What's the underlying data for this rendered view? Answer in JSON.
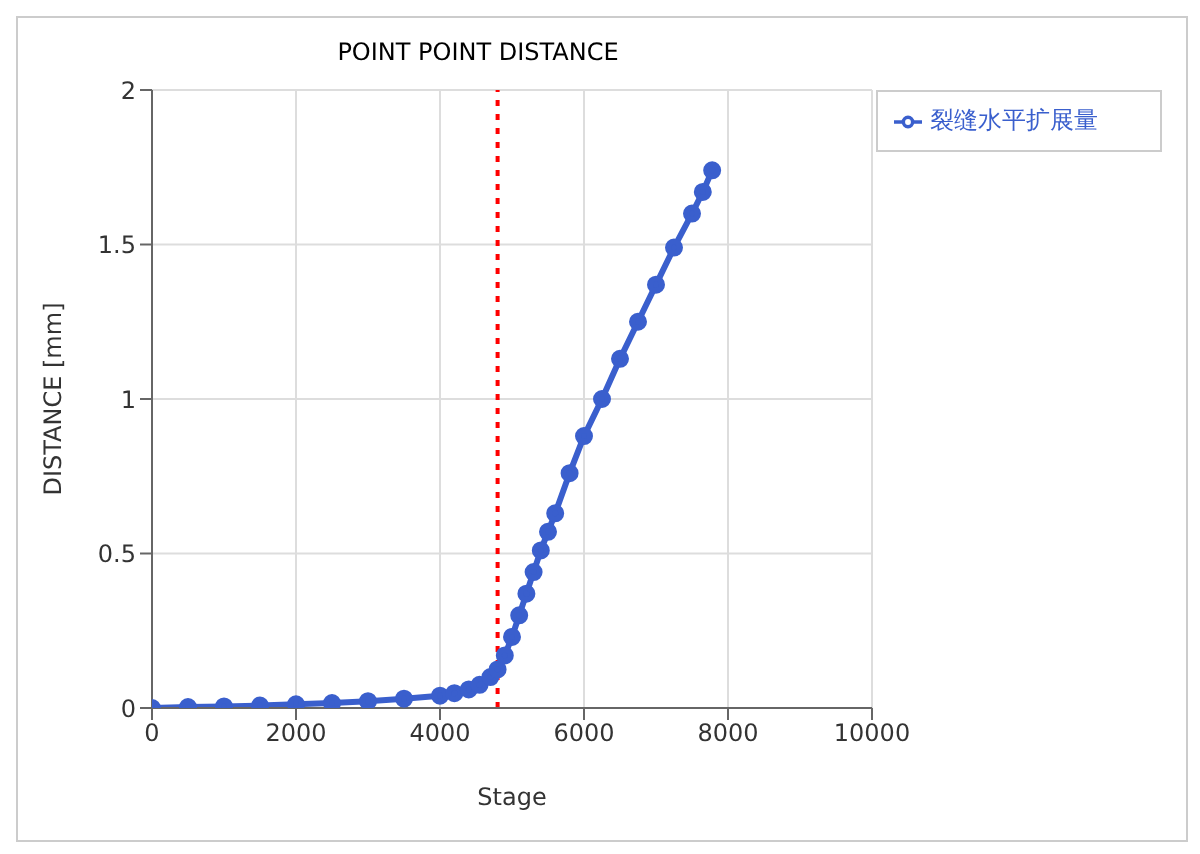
{
  "chart_data": {
    "type": "line",
    "title": "POINT POINT DISTANCE",
    "xlabel": "Stage",
    "ylabel": "DISTANCE [mm]",
    "x": [
      0,
      500,
      1000,
      1500,
      2000,
      2500,
      3000,
      3500,
      4000,
      4200,
      4400,
      4550,
      4700,
      4800,
      4900,
      5000,
      5100,
      5200,
      5300,
      5400,
      5500,
      5600,
      5800,
      6000,
      6250,
      6500,
      6750,
      7000,
      7250,
      7500,
      7650,
      7780
    ],
    "series": [
      {
        "name": "裂缝水平扩展量",
        "color": "#3a5fcd",
        "values": [
          0,
          0.003,
          0.005,
          0.008,
          0.012,
          0.016,
          0.022,
          0.03,
          0.04,
          0.048,
          0.06,
          0.075,
          0.1,
          0.125,
          0.17,
          0.23,
          0.3,
          0.37,
          0.44,
          0.51,
          0.57,
          0.63,
          0.76,
          0.88,
          1.0,
          1.13,
          1.25,
          1.37,
          1.49,
          1.6,
          1.67,
          1.74
        ]
      }
    ],
    "xlim": [
      0,
      10000
    ],
    "xticks": [
      0,
      2000,
      4000,
      6000,
      8000,
      10000
    ],
    "ylim": [
      0,
      2
    ],
    "yticks": [
      0,
      0.5,
      1,
      1.5,
      2
    ],
    "ref_lines": [
      {
        "axis": "x",
        "value": 4800,
        "color": "#ff0000",
        "line_style": "dotted"
      }
    ],
    "grid": true,
    "legend": "top right",
    "marker": "circle"
  }
}
